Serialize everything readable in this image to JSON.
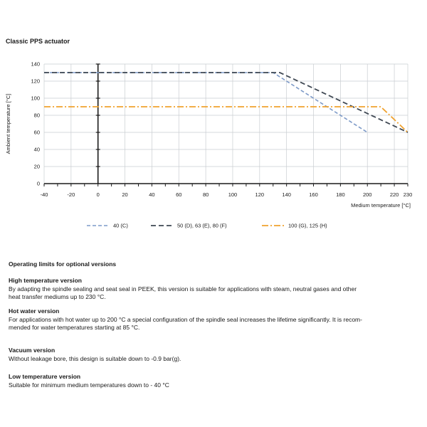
{
  "page": {
    "title": "Classic PPS actuator"
  },
  "chart_data": {
    "type": "line",
    "title": "",
    "xlabel": "Medium temperature [°C]",
    "ylabel": "Ambient temperature [°C]",
    "xlim": [
      -40,
      230
    ],
    "ylim": [
      0,
      140
    ],
    "x_ticks": [
      -40,
      -20,
      0,
      20,
      40,
      60,
      80,
      100,
      120,
      140,
      160,
      180,
      200,
      220,
      230
    ],
    "x_minor_tick_step": 10,
    "y_ticks": [
      0,
      20,
      40,
      60,
      80,
      100,
      120,
      140
    ],
    "grid": true,
    "grid_color": "#c9cdd1",
    "axis_color": "#1a1a1a",
    "legend_position": "bottom",
    "series": [
      {
        "name": "40 (C)",
        "color": "#7d9ac8",
        "dash": "5 3",
        "width": 1.6,
        "points": [
          [
            -40,
            130
          ],
          [
            130,
            130
          ],
          [
            200,
            60
          ]
        ]
      },
      {
        "name": "50 (D), 63 (E), 80 (F)",
        "color": "#3f4853",
        "dash": "7 4",
        "width": 1.8,
        "points": [
          [
            -40,
            130
          ],
          [
            135,
            130
          ],
          [
            230,
            60
          ]
        ]
      },
      {
        "name": "100 (G), 125 (H)",
        "color": "#f0a22f",
        "dash": "9 3 2 3",
        "width": 1.8,
        "points": [
          [
            -40,
            90
          ],
          [
            210,
            90
          ],
          [
            230,
            60
          ]
        ]
      }
    ]
  },
  "sections": {
    "intro_heading": "Operating limits for optional versions",
    "items": [
      {
        "heading": "High temperature version",
        "body": "By adapting the spindle sealing and seat seal in PEEK, this version is suitable for applications with steam, neutral gases and other\nheat transfer mediums up to 230 °C."
      },
      {
        "heading": "Hot water version",
        "body": "For applications with hot water up to 200 °C a special configuration of the spindle seal increases the lifetime significantly. It is recom-\nmended for water temperatures starting at 85 °C."
      },
      {
        "heading": "Vacuum version",
        "body": "Without leakage bore, this design is suitable down to -0.9 bar(g)."
      },
      {
        "heading": "Low temperature version",
        "body": "Suitable for minimum medium temperatures down to - 40 °C"
      }
    ]
  }
}
